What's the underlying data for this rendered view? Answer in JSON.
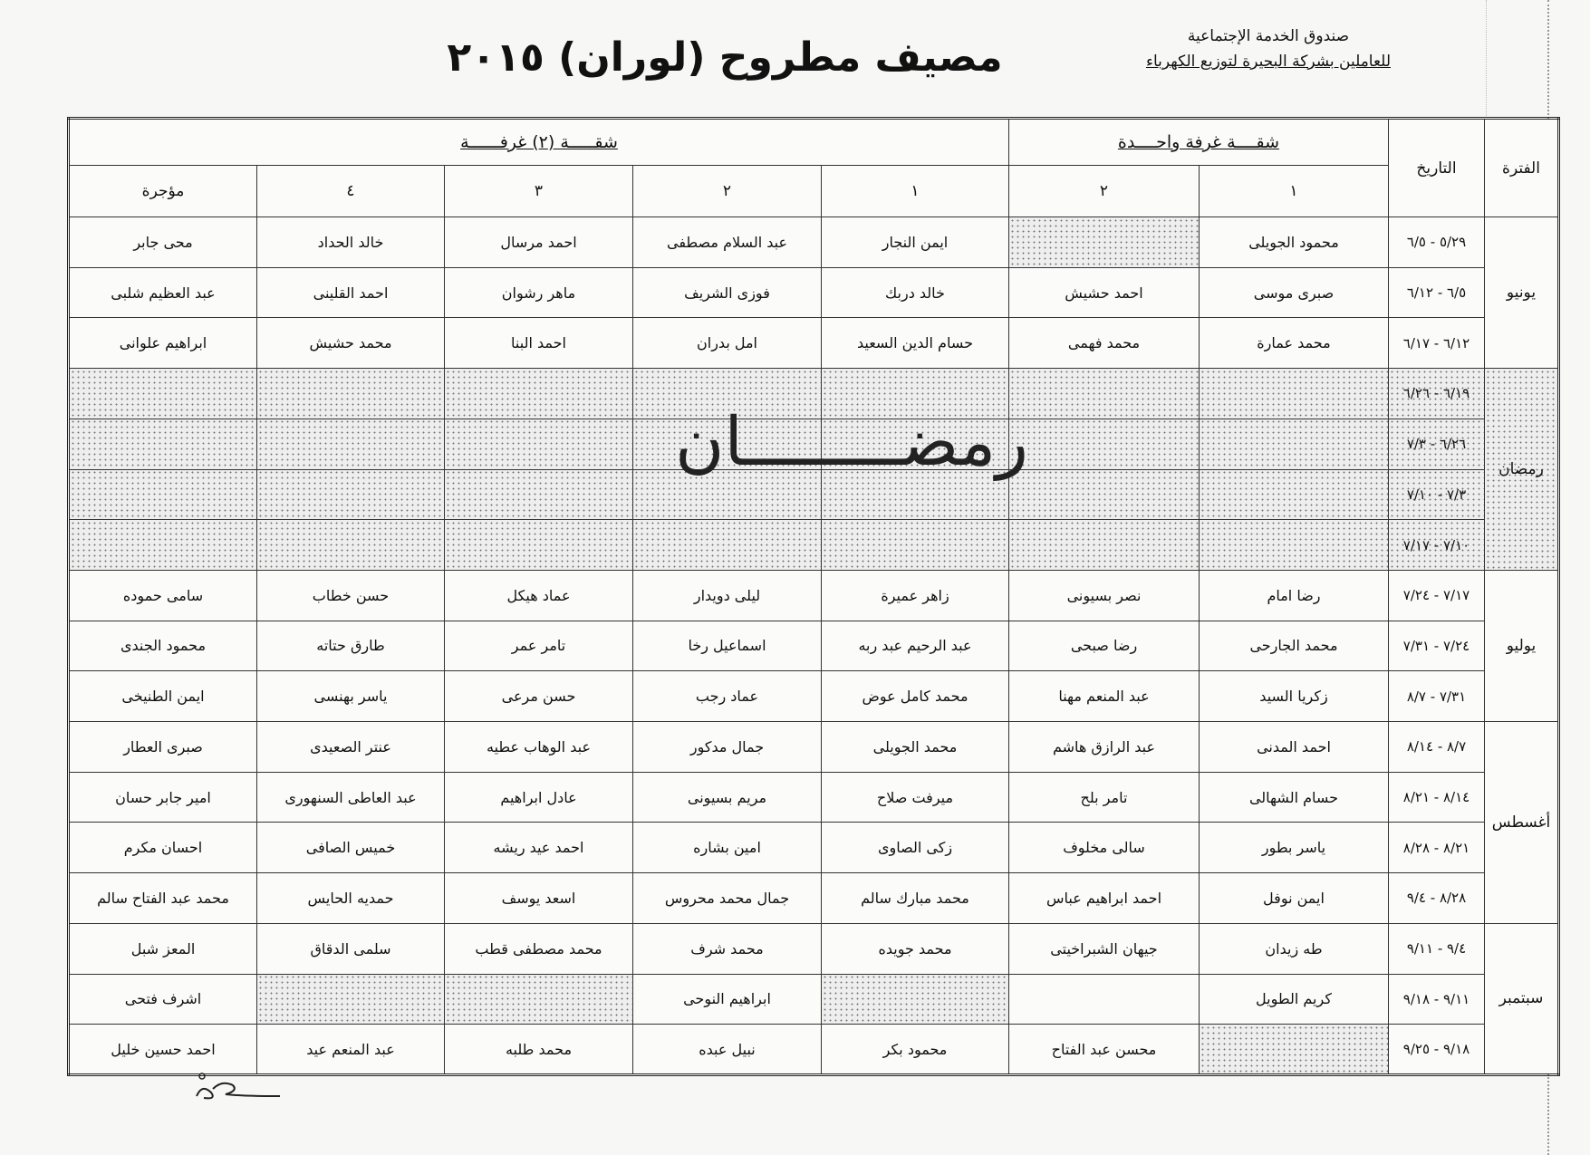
{
  "header": {
    "org_line1": "صندوق الخدمة الإجتماعية",
    "org_line2": "للعاملين بشركة البحيرة لتوزيع الكهرباء",
    "title": "مصيف مطروح (لوران) ٢٠١٥"
  },
  "table": {
    "col_period": "الفترة",
    "col_date": "التاريخ",
    "group_one_room": "شقــــة غرفة واحــــدة",
    "group_two_rooms": "شقـــــة (٢) غرفــــــة",
    "one_room_cols": [
      "١",
      "٢"
    ],
    "two_room_cols": [
      "١",
      "٢",
      "٣",
      "٤",
      "مؤجرة"
    ],
    "ramadan_label": "رمضــــــــان",
    "groups": [
      {
        "period": "يونيو",
        "rows": [
          {
            "date": "٥/٢٩ - ٦/٥",
            "cells": [
              "محمود الجويلى",
              "",
              "ايمن النجار",
              "عبد السلام مصطفى",
              "احمد مرسال",
              "خالد الحداد",
              "محى جابر"
            ],
            "shaded": [
              1
            ]
          },
          {
            "date": "٦/٥ - ٦/١٢",
            "cells": [
              "صبرى موسى",
              "احمد حشيش",
              "خالد دربك",
              "فوزى الشريف",
              "ماهر رشوان",
              "احمد القلينى",
              "عبد العظيم شلبى"
            ],
            "shaded": []
          },
          {
            "date": "٦/١٢ - ٦/١٧",
            "cells": [
              "محمد عمارة",
              "محمد فهمى",
              "حسام الدين السعيد",
              "امل بدران",
              "احمد البنا",
              "محمد حشيش",
              "ابراهيم علوانى"
            ],
            "shaded": []
          }
        ]
      },
      {
        "period": "رمضان",
        "ramadan": true,
        "rows": [
          {
            "date": "٦/١٩ - ٦/٢٦",
            "cells": [
              "",
              "",
              "",
              "",
              "",
              "",
              ""
            ],
            "shaded": [
              0,
              1,
              2,
              3,
              4,
              5,
              6
            ]
          },
          {
            "date": "٦/٢٦ - ٧/٣",
            "cells": [
              "",
              "",
              "",
              "",
              "",
              "",
              ""
            ],
            "shaded": [
              0,
              1,
              2,
              3,
              4,
              5,
              6
            ]
          },
          {
            "date": "٧/٣ - ٧/١٠",
            "cells": [
              "",
              "",
              "",
              "",
              "",
              "",
              ""
            ],
            "shaded": [
              0,
              1,
              2,
              3,
              4,
              5,
              6
            ]
          },
          {
            "date": "٧/١٠ - ٧/١٧",
            "cells": [
              "",
              "",
              "",
              "",
              "",
              "",
              ""
            ],
            "shaded": [
              0,
              1,
              2,
              3,
              4,
              5,
              6
            ]
          }
        ]
      },
      {
        "period": "يوليو",
        "rows": [
          {
            "date": "٧/١٧ - ٧/٢٤",
            "cells": [
              "رضا امام",
              "نصر بسيونى",
              "زاهر عميرة",
              "ليلى دويدار",
              "عماد هيكل",
              "حسن خطاب",
              "سامى حموده"
            ],
            "shaded": []
          },
          {
            "date": "٧/٢٤ - ٧/٣١",
            "cells": [
              "محمد الجارحى",
              "رضا صبحى",
              "عبد الرحيم عبد ربه",
              "اسماعيل رخا",
              "تامر عمر",
              "طارق حتاته",
              "محمود الجندى"
            ],
            "shaded": []
          },
          {
            "date": "٧/٣١ - ٨/٧",
            "cells": [
              "زكريا السيد",
              "عبد المنعم مهنا",
              "محمد كامل عوض",
              "عماد رجب",
              "حسن مرعى",
              "ياسر بهنسى",
              "ايمن الطنيخى"
            ],
            "shaded": []
          }
        ]
      },
      {
        "period": "أغسطس",
        "rows": [
          {
            "date": "٨/٧ - ٨/١٤",
            "cells": [
              "احمد المدنى",
              "عبد الرازق هاشم",
              "محمد الجويلى",
              "جمال مدكور",
              "عبد الوهاب عطيه",
              "عنتر الصعيدى",
              "صبرى العطار"
            ],
            "shaded": []
          },
          {
            "date": "٨/١٤ - ٨/٢١",
            "cells": [
              "حسام الشهالى",
              "تامر بلح",
              "ميرفت صلاح",
              "مريم بسيونى",
              "عادل ابراهيم",
              "عبد العاطى السنهورى",
              "امير جابر حسان"
            ],
            "shaded": []
          },
          {
            "date": "٨/٢١ - ٨/٢٨",
            "cells": [
              "ياسر بطور",
              "سالى مخلوف",
              "زكى الصاوى",
              "امين بشاره",
              "احمد عيد ريشه",
              "خميس الصافى",
              "احسان مكرم"
            ],
            "shaded": []
          },
          {
            "date": "٨/٢٨ - ٩/٤",
            "cells": [
              "ايمن نوفل",
              "احمد ابراهيم عباس",
              "محمد مبارك سالم",
              "جمال محمد محروس",
              "اسعد يوسف",
              "حمديه الحايس",
              "محمد عبد الفتاح سالم"
            ],
            "shaded": []
          }
        ]
      },
      {
        "period": "سبتمبر",
        "rows": [
          {
            "date": "٩/٤ - ٩/١١",
            "cells": [
              "طه زيدان",
              "جيهان الشبراخيتى",
              "محمد جويده",
              "محمد شرف",
              "محمد مصطفى قطب",
              "سلمى الدقاق",
              "المعز شبل"
            ],
            "shaded": []
          },
          {
            "date": "٩/١١ - ٩/١٨",
            "cells": [
              "كريم الطويل",
              "",
              "",
              "ابراهيم النوحى",
              "",
              "",
              "اشرف فتحى"
            ],
            "shaded": [
              2,
              4,
              5
            ]
          },
          {
            "date": "٩/١٨ - ٩/٢٥",
            "cells": [
              "",
              "محسن عبد الفتاح",
              "محمود بكر",
              "نبيل عبده",
              "محمد طلبه",
              "عبد المنعم عيد",
              "احمد حسين خليل"
            ],
            "shaded": [
              0
            ]
          }
        ]
      }
    ]
  }
}
